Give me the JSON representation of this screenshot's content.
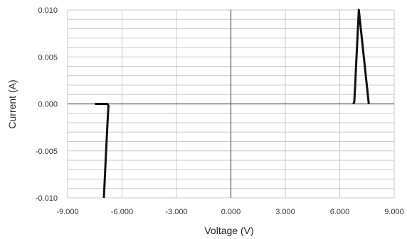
{
  "chart_data": {
    "type": "line",
    "title": "",
    "xlabel": "Voltage (V)",
    "ylabel": "Current (A)",
    "xlim": [
      -9,
      9
    ],
    "ylim": [
      -0.01,
      0.01
    ],
    "x_ticks": [
      "-9.000",
      "-6.000",
      "-3.000",
      "0.000",
      "3.000",
      "6.000",
      "9.000"
    ],
    "y_ticks": [
      "-0.010",
      "-0.005",
      "0.000",
      "0.005",
      "0.010"
    ],
    "grid": true,
    "legend": "none",
    "line_color": "#111111",
    "series": [
      {
        "x": [
          -7.5,
          -6.8,
          -6.75,
          -6.8,
          -6.85,
          -6.9,
          -7.0,
          6.75,
          6.8,
          6.85,
          6.9,
          6.95,
          7.05,
          7.6
        ],
        "y": [
          0.0,
          0.0,
          -0.0002,
          -0.002,
          -0.004,
          -0.006,
          -0.01,
          0.0,
          0.0002,
          0.002,
          0.004,
          0.006,
          0.01,
          0.0
        ]
      }
    ]
  }
}
